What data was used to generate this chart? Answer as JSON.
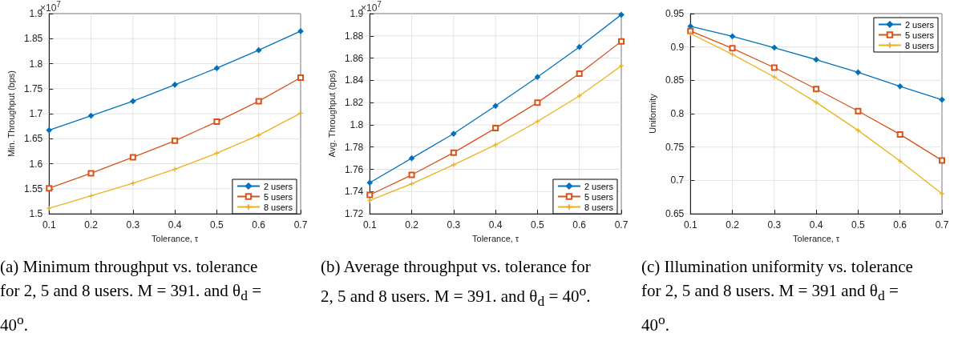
{
  "chart_data": [
    {
      "type": "line",
      "xlabel": "Tolerance, τ",
      "ylabel": "Min. Throughput (bps)",
      "x": [
        0.1,
        0.2,
        0.3,
        0.4,
        0.5,
        0.6,
        0.7
      ],
      "series": [
        {
          "name": "2 users",
          "color": "#0072bd",
          "marker": "diamond",
          "values": [
            1.667,
            1.696,
            1.725,
            1.758,
            1.791,
            1.827,
            1.865
          ]
        },
        {
          "name": "5 users",
          "color": "#d95319",
          "marker": "square",
          "values": [
            1.551,
            1.581,
            1.613,
            1.646,
            1.684,
            1.725,
            1.772
          ]
        },
        {
          "name": "8 users",
          "color": "#edb120",
          "marker": "cross",
          "values": [
            1.511,
            1.536,
            1.561,
            1.589,
            1.621,
            1.657,
            1.701
          ]
        }
      ],
      "xlim": [
        0.1,
        0.7
      ],
      "xticks": [
        0.1,
        0.2,
        0.3,
        0.4,
        0.5,
        0.6,
        0.7
      ],
      "ylim": [
        1.5,
        1.9
      ],
      "yticks": [
        1.5,
        1.55,
        1.6,
        1.65,
        1.7,
        1.75,
        1.8,
        1.85,
        1.9
      ],
      "grid": true,
      "legend": "bottom right",
      "line_style": "solid",
      "annotations": [
        "×10$^{7}$",
        "(a)  Minimum throughput vs. tolerance for 2, 5 and 8 users. M = 391. and θ$_{d}$ = 40$^{o}$."
      ]
    },
    {
      "type": "line",
      "xlabel": "Tolerance, τ",
      "ylabel": "Avg. Throughput (bps)",
      "x": [
        0.1,
        0.2,
        0.3,
        0.4,
        0.5,
        0.6,
        0.7
      ],
      "series": [
        {
          "name": "2 users",
          "color": "#0072bd",
          "marker": "diamond",
          "values": [
            1.748,
            1.77,
            1.792,
            1.817,
            1.843,
            1.87,
            1.899
          ]
        },
        {
          "name": "5 users",
          "color": "#d95319",
          "marker": "square",
          "values": [
            1.737,
            1.755,
            1.775,
            1.797,
            1.82,
            1.846,
            1.875
          ]
        },
        {
          "name": "8 users",
          "color": "#edb120",
          "marker": "cross",
          "values": [
            1.732,
            1.747,
            1.764,
            1.782,
            1.803,
            1.826,
            1.853
          ]
        }
      ],
      "xlim": [
        0.1,
        0.7
      ],
      "xticks": [
        0.1,
        0.2,
        0.3,
        0.4,
        0.5,
        0.6,
        0.7
      ],
      "ylim": [
        1.72,
        1.9
      ],
      "yticks": [
        1.72,
        1.74,
        1.76,
        1.78,
        1.8,
        1.82,
        1.84,
        1.86,
        1.88,
        1.9
      ],
      "grid": true,
      "legend": "bottom right",
      "line_style": "solid",
      "annotations": [
        "×10$^{7}$",
        "(b)  Average throughput vs. tolerance for 2, 5 and 8 users. M = 391. and θ$_{d}$ = 40$^{o}$."
      ]
    },
    {
      "type": "line",
      "xlabel": "Tolerance, τ",
      "ylabel": "Uniformity",
      "x": [
        0.1,
        0.2,
        0.3,
        0.4,
        0.5,
        0.6,
        0.7
      ],
      "series": [
        {
          "name": "2 users",
          "color": "#0072bd",
          "marker": "diamond",
          "values": [
            0.931,
            0.916,
            0.899,
            0.881,
            0.862,
            0.841,
            0.821
          ]
        },
        {
          "name": "5 users",
          "color": "#d95319",
          "marker": "square",
          "values": [
            0.924,
            0.898,
            0.869,
            0.837,
            0.804,
            0.769,
            0.73
          ]
        },
        {
          "name": "8 users",
          "color": "#edb120",
          "marker": "cross",
          "values": [
            0.92,
            0.889,
            0.855,
            0.817,
            0.775,
            0.729,
            0.68
          ]
        }
      ],
      "xlim": [
        0.1,
        0.7
      ],
      "xticks": [
        0.1,
        0.2,
        0.3,
        0.4,
        0.5,
        0.6,
        0.7
      ],
      "ylim": [
        0.65,
        0.95
      ],
      "yticks": [
        0.65,
        0.7,
        0.75,
        0.8,
        0.85,
        0.9,
        0.95
      ],
      "grid": true,
      "legend": "top right",
      "line_style": "solid",
      "annotations": [
        "(c)  Illumination uniformity vs. tolerance for 2, 5 and 8 users. M = 391 and θ$_{d}$ = 40$^{o}$."
      ]
    }
  ]
}
